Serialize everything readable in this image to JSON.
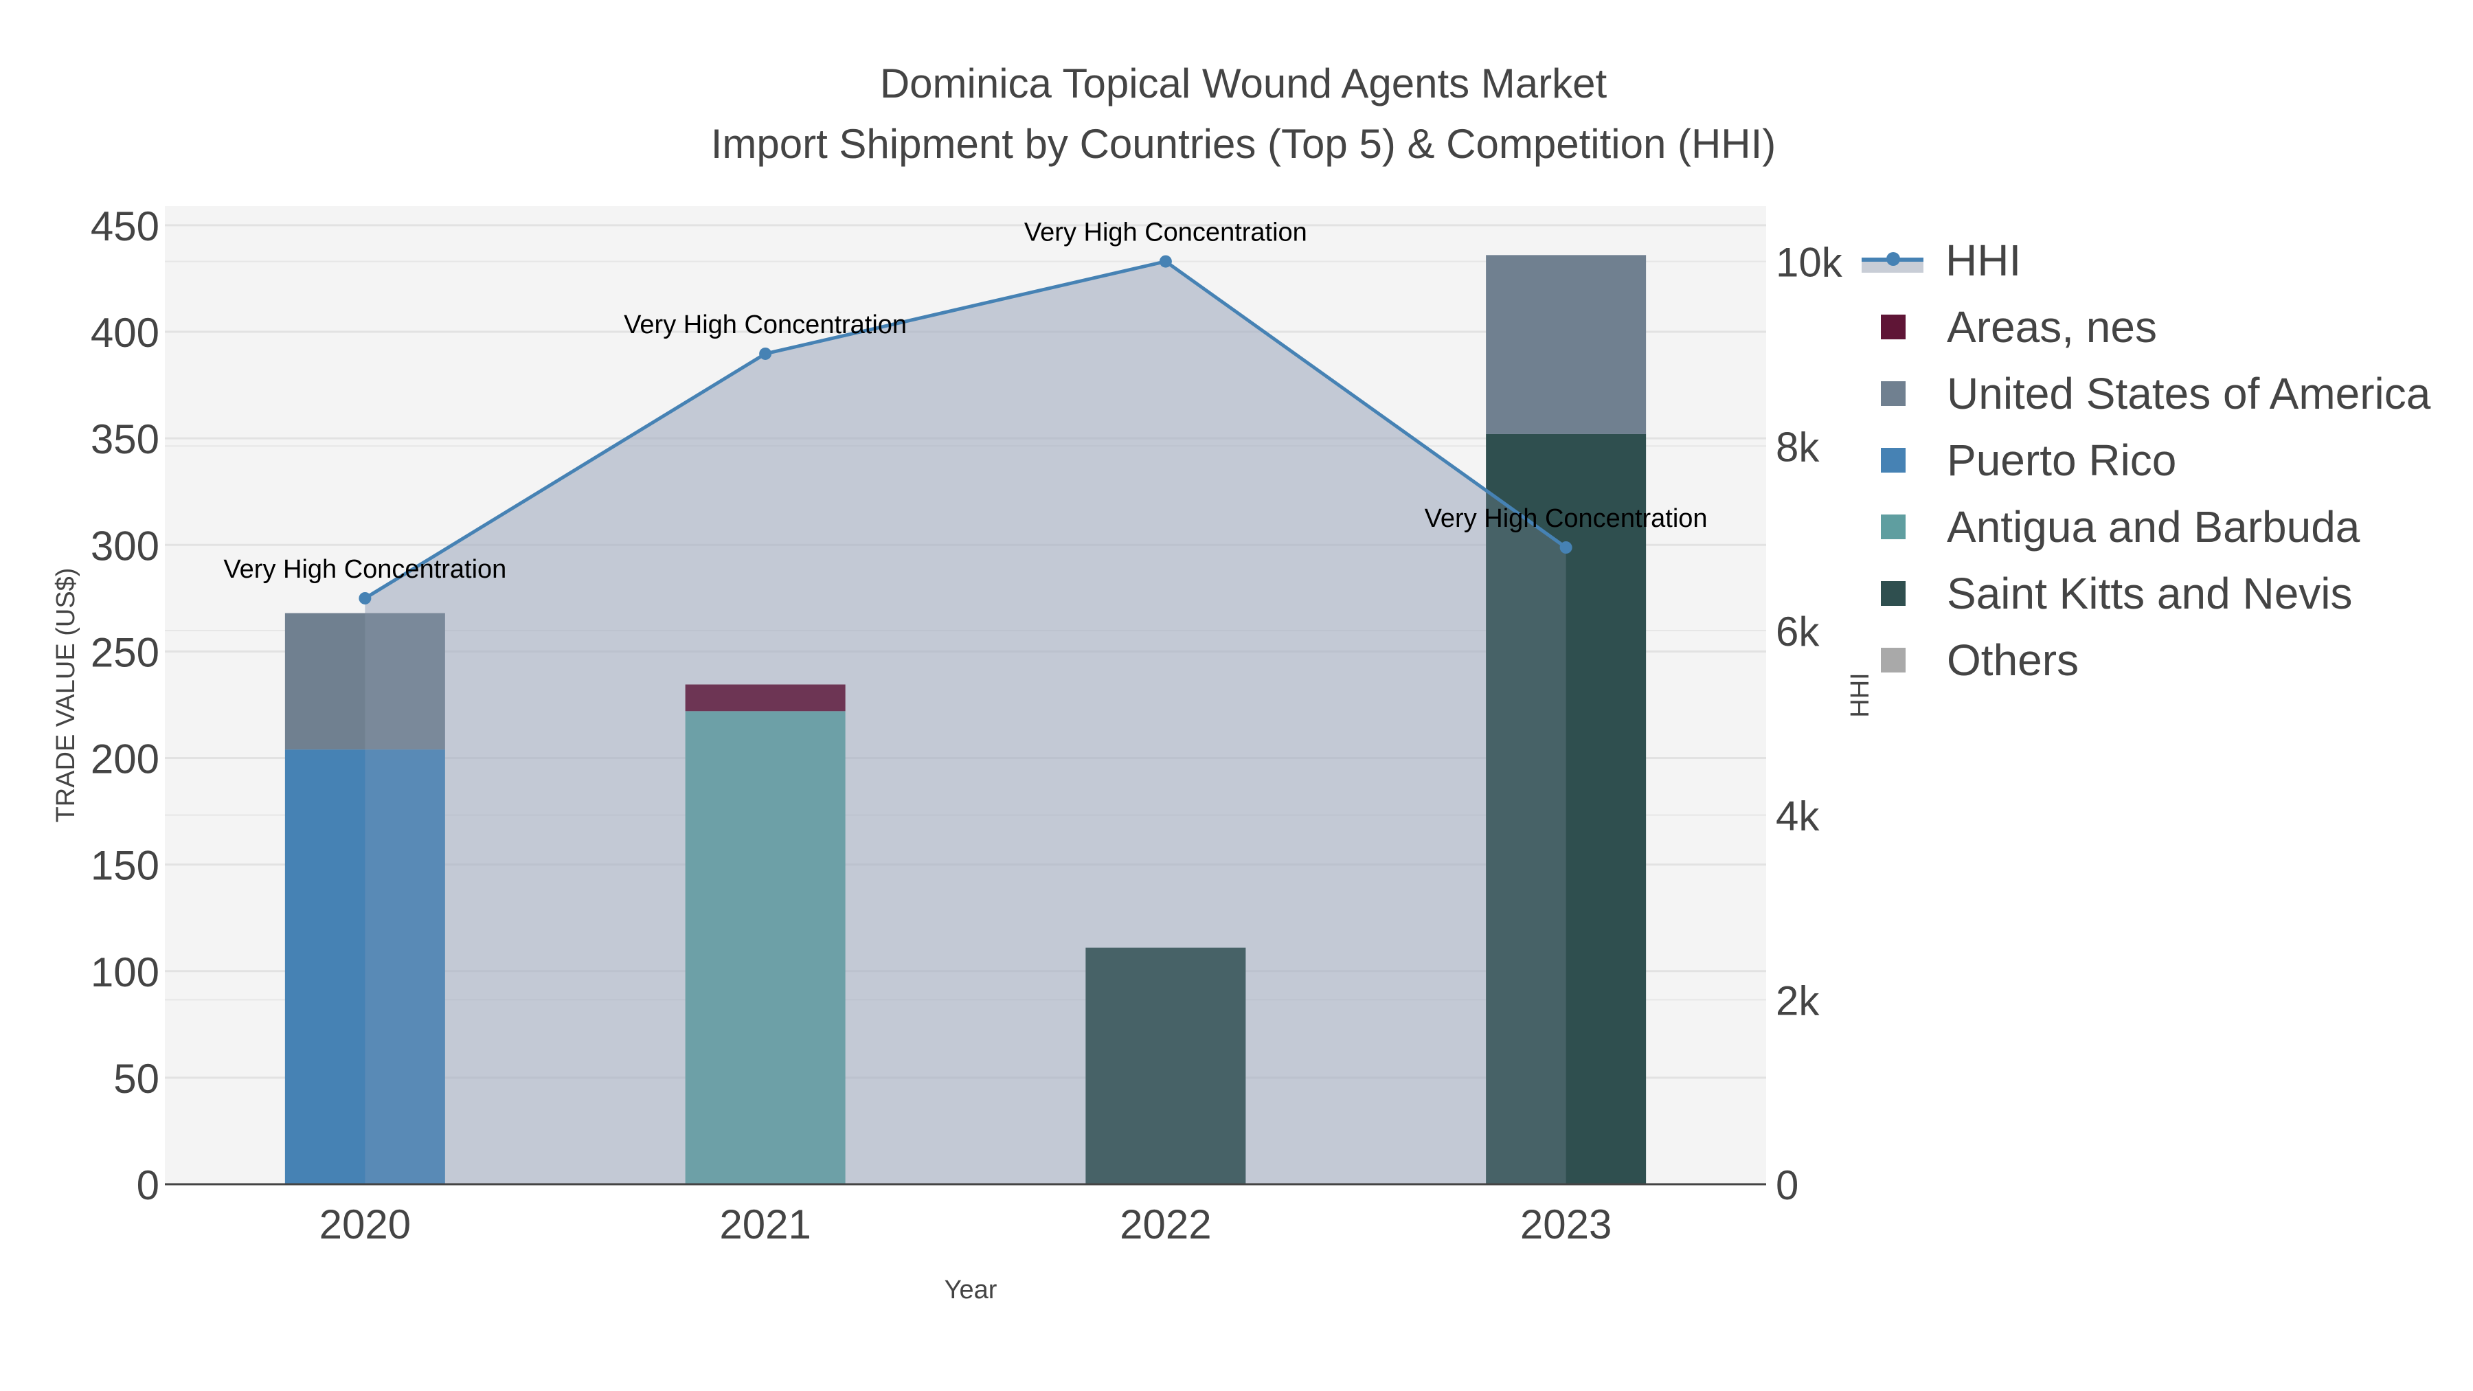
{
  "chart_data": {
    "type": "bar",
    "barmode": "stack",
    "title": "Dominica Topical Wound Agents Market",
    "subtitle": "Import Shipment by Countries (Top 5) & Competition (HHI)",
    "xlabel": "Year",
    "ylabel": "TRADE VALUE (US$)",
    "y2label": "HHI",
    "categories": [
      "2020",
      "2021",
      "2022",
      "2023"
    ],
    "ylim": [
      0,
      459
    ],
    "yticks": [
      0,
      50,
      100,
      150,
      200,
      250,
      300,
      350,
      400,
      450
    ],
    "y2lim": [
      0,
      10600
    ],
    "y2ticks": [
      0,
      2000,
      4000,
      6000,
      8000,
      10000
    ],
    "y2ticklabels": [
      "0",
      "2k",
      "4k",
      "6k",
      "8k",
      "10k"
    ],
    "grid": true,
    "legend_position": "right",
    "series": [
      {
        "name": "Saint Kitts and Nevis",
        "color": "#2f4f4f",
        "values": [
          0,
          0,
          111,
          352
        ]
      },
      {
        "name": "Antigua and Barbuda",
        "color": "#5f9ea0",
        "values": [
          0,
          222,
          0,
          0
        ]
      },
      {
        "name": "Puerto Rico",
        "color": "#4682b4",
        "values": [
          204,
          0,
          0,
          0
        ]
      },
      {
        "name": "United States of America",
        "color": "#708090",
        "values": [
          64,
          0,
          0,
          84
        ]
      },
      {
        "name": "Areas, nes",
        "color": "#5f1536",
        "values": [
          0,
          12.5,
          0,
          0
        ]
      },
      {
        "name": "Others",
        "color": "#a9a9a9",
        "values": [
          0,
          0,
          0,
          0
        ]
      }
    ],
    "line_series": {
      "name": "HHI",
      "axis": "y2",
      "color": "#4682b4",
      "fill": "tozeroy",
      "values": [
        6350,
        9000,
        10000,
        6900
      ],
      "annotations": [
        "Very High Concentration",
        "Very High Concentration",
        "Very High Concentration",
        "Very High Concentration"
      ]
    }
  },
  "legend": {
    "items": [
      {
        "label": "HHI",
        "type": "line",
        "color": "#4682b4"
      },
      {
        "label": "Areas, nes",
        "type": "box",
        "color": "#5f1536"
      },
      {
        "label": "United States of America",
        "type": "box",
        "color": "#708090"
      },
      {
        "label": "Puerto Rico",
        "type": "box",
        "color": "#4682b4"
      },
      {
        "label": "Antigua and Barbuda",
        "type": "box",
        "color": "#5f9ea0"
      },
      {
        "label": "Saint Kitts and Nevis",
        "type": "box",
        "color": "#2f4f4f"
      },
      {
        "label": "Others",
        "type": "box",
        "color": "#a9a9a9"
      }
    ]
  }
}
